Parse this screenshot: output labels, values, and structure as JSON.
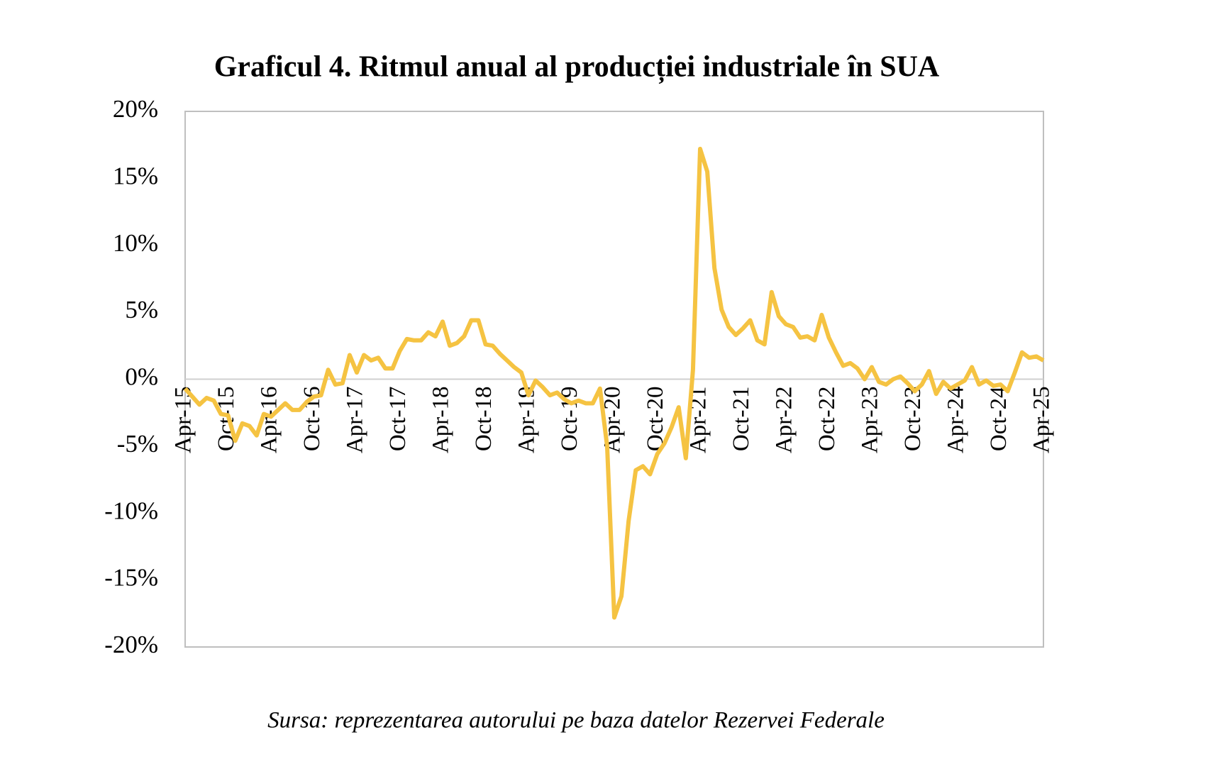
{
  "chart_data": {
    "type": "line",
    "title": "Graficul 4. Ritmul anual al producției industriale în SUA",
    "source": "Sursa: reprezentarea autorului pe baza datelor Rezervei Federale",
    "categories": [
      "Apr-15",
      null,
      null,
      null,
      null,
      null,
      "Oct-15",
      null,
      null,
      null,
      null,
      null,
      "Apr-16",
      null,
      null,
      null,
      null,
      null,
      "Oct-16",
      null,
      null,
      null,
      null,
      null,
      "Apr-17",
      null,
      null,
      null,
      null,
      null,
      "Oct-17",
      null,
      null,
      null,
      null,
      null,
      "Apr-18",
      null,
      null,
      null,
      null,
      null,
      "Oct-18",
      null,
      null,
      null,
      null,
      null,
      "Apr-19",
      null,
      null,
      null,
      null,
      null,
      "Oct-19",
      null,
      null,
      null,
      null,
      null,
      "Apr-20",
      null,
      null,
      null,
      null,
      null,
      "Oct-20",
      null,
      null,
      null,
      null,
      null,
      "Apr-21",
      null,
      null,
      null,
      null,
      null,
      "Oct-21",
      null,
      null,
      null,
      null,
      null,
      "Apr-22",
      null,
      null,
      null,
      null,
      null,
      "Oct-22",
      null,
      null,
      null,
      null,
      null,
      "Apr-23",
      null,
      null,
      null,
      null,
      null,
      "Oct-23",
      null,
      null,
      null,
      null,
      null,
      "Apr-24",
      null,
      null,
      null,
      null,
      null,
      "Oct-24",
      null,
      null,
      null,
      null,
      null,
      "Apr-25"
    ],
    "values": [
      -0.7,
      -1.3,
      -1.9,
      -1.4,
      -1.6,
      -2.6,
      -2.7,
      -4.6,
      -3.3,
      -3.5,
      -4.2,
      -2.6,
      -2.8,
      -2.3,
      -1.8,
      -2.3,
      -2.3,
      -1.7,
      -1.3,
      -1.2,
      0.7,
      -0.4,
      -0.3,
      1.8,
      0.5,
      1.8,
      1.4,
      1.6,
      0.8,
      0.8,
      2.1,
      3.0,
      2.9,
      2.9,
      3.5,
      3.2,
      4.3,
      2.5,
      2.7,
      3.2,
      4.4,
      4.4,
      2.6,
      2.5,
      1.9,
      1.4,
      0.9,
      0.5,
      -1.2,
      -0.1,
      -0.6,
      -1.2,
      -1.0,
      -1.5,
      -1.8,
      -1.6,
      -1.8,
      -1.8,
      -0.7,
      -5.0,
      -17.8,
      -16.2,
      -10.6,
      -6.8,
      -6.5,
      -7.1,
      -5.6,
      -4.8,
      -3.6,
      -2.1,
      -5.9,
      0.7,
      17.2,
      15.5,
      8.3,
      5.2,
      3.9,
      3.3,
      3.8,
      4.4,
      2.9,
      2.6,
      6.5,
      4.7,
      4.1,
      3.9,
      3.1,
      3.2,
      2.9,
      4.8,
      3.1,
      2.0,
      1.0,
      1.2,
      0.8,
      0.0,
      0.9,
      -0.2,
      -0.4,
      0.0,
      0.2,
      -0.3,
      -0.9,
      -0.4,
      0.6,
      -1.1,
      -0.2,
      -0.7,
      -0.4,
      -0.1,
      0.9,
      -0.4,
      -0.1,
      -0.5,
      -0.4,
      -0.9,
      0.5,
      2.0,
      1.6,
      1.7,
      1.4
    ],
    "color": "#f5c342",
    "ylim": [
      -20,
      20
    ],
    "yticks": [
      {
        "value": -20,
        "label": "-20%"
      },
      {
        "value": -15,
        "label": "-15%"
      },
      {
        "value": -10,
        "label": "-10%"
      },
      {
        "value": -5,
        "label": "-5%"
      },
      {
        "value": 0,
        "label": "0%"
      },
      {
        "value": 5,
        "label": "5%"
      },
      {
        "value": 10,
        "label": "10%"
      },
      {
        "value": 15,
        "label": "15%"
      },
      {
        "value": 20,
        "label": "20%"
      }
    ]
  }
}
